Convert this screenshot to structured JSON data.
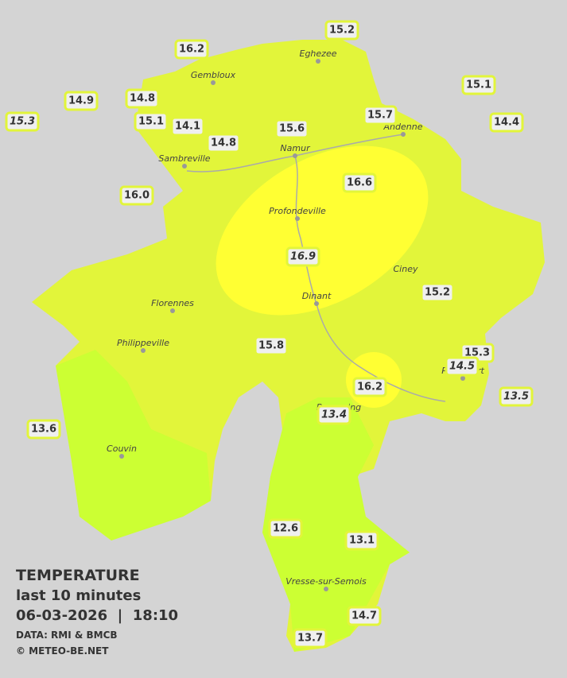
{
  "stations": [
    "15.2",
    "16.2",
    "15.1",
    "14.9",
    "14.8",
    "15.3",
    "15.1",
    "14.1",
    "15.7",
    "15.6",
    "14.4",
    "14.8",
    "16.6",
    "16.0",
    "16.9",
    "15.2",
    "15.8",
    "15.3",
    "14.5",
    "13.5",
    "16.2",
    "13.4",
    "13.6",
    "12.6",
    "13.1",
    "14.7",
    "13.7"
  ],
  "cities": [
    "Eghezee",
    "Gembloux",
    "Andenne",
    "Namur",
    "Sambreville",
    "Profondeville",
    "Ciney",
    "Dinant",
    "Florennes",
    "Philippeville",
    "Beauraing",
    "Rochefort",
    "Couvin",
    "Vresse-sur-Semois"
  ],
  "legend": {
    "title": "TEMPERATURE",
    "subtitle": "last 10 minutes",
    "datetime": "06-03-2026  |  18:10",
    "source": "DATA: RMI & BMCB",
    "credit": "© METEO-BE.NET"
  }
}
